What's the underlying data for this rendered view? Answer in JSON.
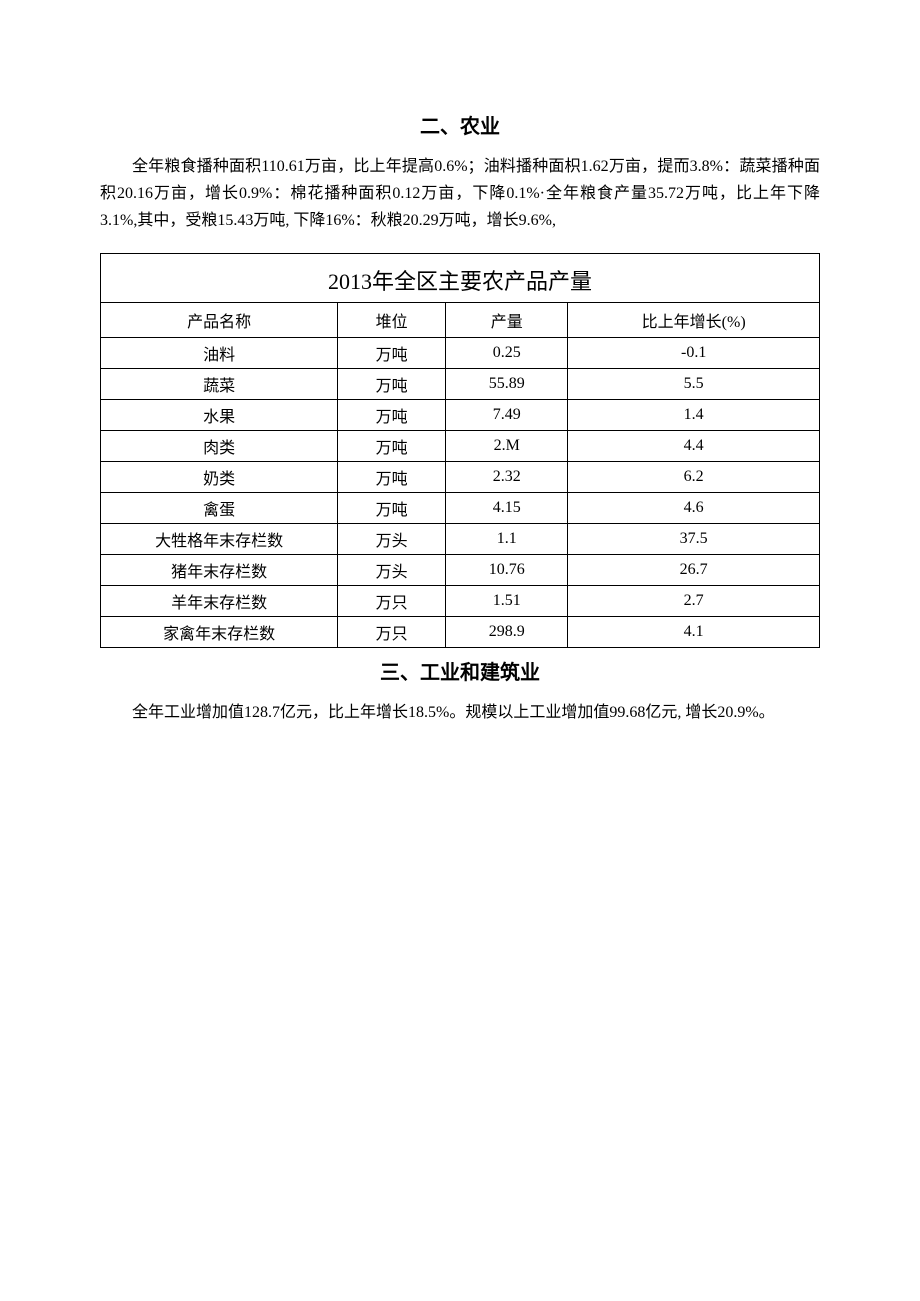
{
  "section2": {
    "title": "二、农业",
    "paragraph": "全年粮食播种面积110.61万亩，比上年提高0.6%；油料播种面枳1.62万亩，提而3.8%：蔬菜播种面积20.16万亩，增长0.9%：棉花播种面积0.12万亩，下降0.1%·全年粮食产量35.72万吨，比上年下降3.1%,其中，受粮15.43万吨, 下降16%：秋粮20.29万吨，增长9.6%,"
  },
  "table": {
    "title": "2013年全区主要农产品产量",
    "columns": [
      "产品名称",
      "堆位",
      "产量",
      "比上年增长(%)"
    ],
    "rows": [
      [
        "油料",
        "万吨",
        "0.25",
        "-0.1"
      ],
      [
        "蔬菜",
        "万吨",
        "55.89",
        "5.5"
      ],
      [
        "水果",
        "万吨",
        "7.49",
        "1.4"
      ],
      [
        "肉类",
        "万吨",
        "2.M",
        "4.4"
      ],
      [
        "奶类",
        "万吨",
        "2.32",
        "6.2"
      ],
      [
        "禽蛋",
        "万吨",
        "4.15",
        "4.6"
      ],
      [
        "大牲格年末存栏数",
        "万头",
        "1.1",
        "37.5"
      ],
      [
        "猪年末存栏数",
        "万头",
        "10.76",
        "26.7"
      ],
      [
        "羊年末存栏数",
        "万只",
        "1.51",
        "2.7"
      ],
      [
        "家禽年末存栏数",
        "万只",
        "298.9",
        "4.1"
      ]
    ],
    "border_color": "#000000",
    "background": "#ffffff",
    "title_fontsize": 22,
    "cell_fontsize": 16
  },
  "section3": {
    "title": "三、工业和建筑业",
    "paragraph": "全年工业增加值128.7亿元，比上年增长18.5%。规模以上工业增加值99.68亿元, 增长20.9%。"
  }
}
